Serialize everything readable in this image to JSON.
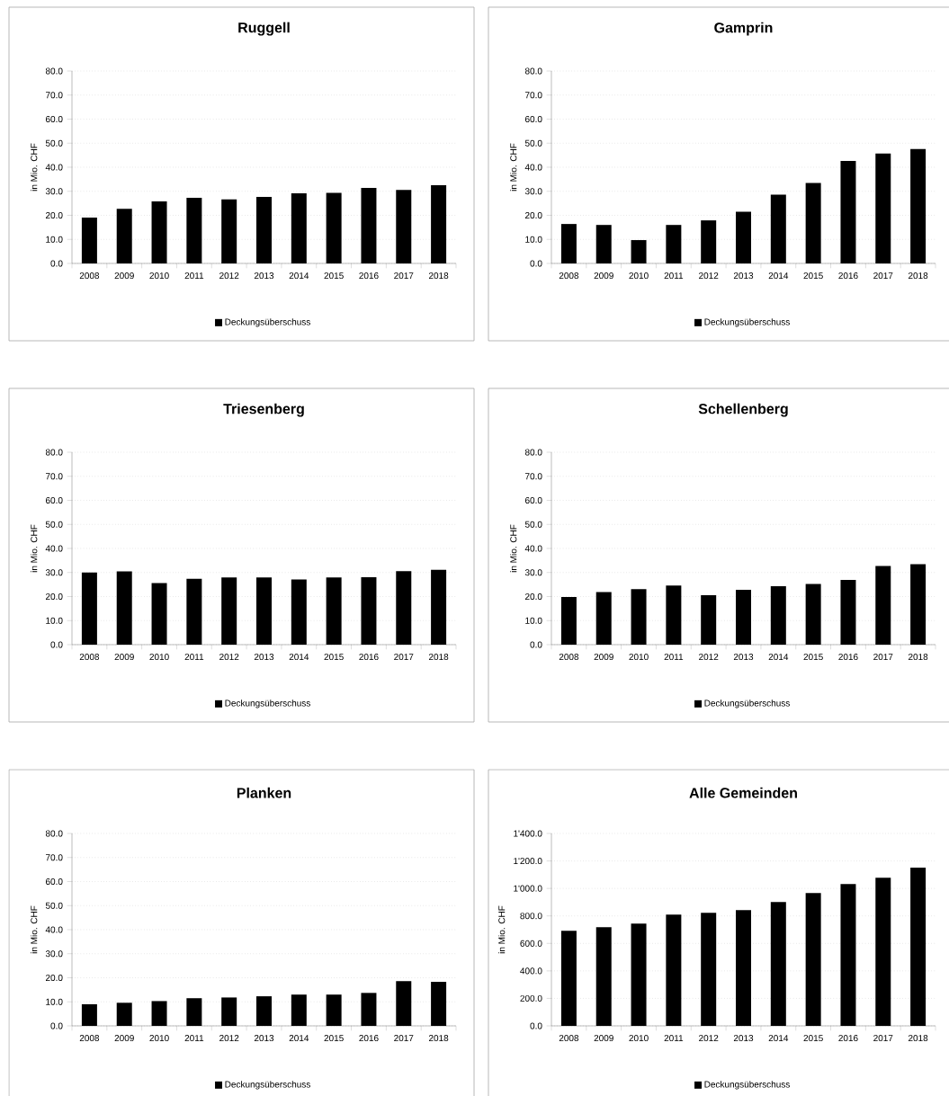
{
  "chart_data": [
    {
      "type": "bar",
      "title": "Ruggell",
      "ylabel": "in Mio. CHF",
      "categories": [
        "2008",
        "2009",
        "2010",
        "2011",
        "2012",
        "2013",
        "2014",
        "2015",
        "2016",
        "2017",
        "2018"
      ],
      "series": [
        {
          "name": "Deckungsüberschuss",
          "color": "#000000",
          "values": [
            19.1,
            22.7,
            25.8,
            27.3,
            26.6,
            27.7,
            29.2,
            29.3,
            31.4,
            30.6,
            32.5
          ]
        }
      ],
      "ylim": [
        0,
        80
      ],
      "yticks": [
        {
          "value": 0,
          "label": "0.0"
        },
        {
          "value": 10,
          "label": "10.0"
        },
        {
          "value": 20,
          "label": "20.0"
        },
        {
          "value": 30,
          "label": "30.0"
        },
        {
          "value": 40,
          "label": "40.0"
        },
        {
          "value": 50,
          "label": "50.0"
        },
        {
          "value": 60,
          "label": "60.0"
        },
        {
          "value": 70,
          "label": "70.0"
        },
        {
          "value": 80,
          "label": "80.0"
        }
      ],
      "grid": "y",
      "legend": "bottom"
    },
    {
      "type": "bar",
      "title": "Gamprin",
      "ylabel": "in Mio. CHF",
      "categories": [
        "2008",
        "2009",
        "2010",
        "2011",
        "2012",
        "2013",
        "2014",
        "2015",
        "2016",
        "2017",
        "2018"
      ],
      "series": [
        {
          "name": "Deckungsüberschuss",
          "color": "#000000",
          "values": [
            16.4,
            16.0,
            9.7,
            16.0,
            17.9,
            21.5,
            28.6,
            33.5,
            42.6,
            45.7,
            47.6
          ]
        }
      ],
      "ylim": [
        0,
        80
      ],
      "yticks": [
        {
          "value": 0,
          "label": "0.0"
        },
        {
          "value": 10,
          "label": "10.0"
        },
        {
          "value": 20,
          "label": "20.0"
        },
        {
          "value": 30,
          "label": "30.0"
        },
        {
          "value": 40,
          "label": "40.0"
        },
        {
          "value": 50,
          "label": "50.0"
        },
        {
          "value": 60,
          "label": "60.0"
        },
        {
          "value": 70,
          "label": "70.0"
        },
        {
          "value": 80,
          "label": "80.0"
        }
      ],
      "grid": "y",
      "legend": "bottom"
    },
    {
      "type": "bar",
      "title": "Triesenberg",
      "ylabel": "in Mio. CHF",
      "categories": [
        "2008",
        "2009",
        "2010",
        "2011",
        "2012",
        "2013",
        "2014",
        "2015",
        "2016",
        "2017",
        "2018"
      ],
      "series": [
        {
          "name": "Deckungsüberschuss",
          "color": "#000000",
          "values": [
            30.0,
            30.5,
            25.6,
            27.4,
            27.9,
            27.9,
            27.1,
            27.9,
            28.0,
            30.6,
            31.1
          ]
        }
      ],
      "ylim": [
        0,
        80
      ],
      "yticks": [
        {
          "value": 0,
          "label": "0.0"
        },
        {
          "value": 10,
          "label": "10.0"
        },
        {
          "value": 20,
          "label": "20.0"
        },
        {
          "value": 30,
          "label": "30.0"
        },
        {
          "value": 40,
          "label": "40.0"
        },
        {
          "value": 50,
          "label": "50.0"
        },
        {
          "value": 60,
          "label": "60.0"
        },
        {
          "value": 70,
          "label": "70.0"
        },
        {
          "value": 80,
          "label": "80.0"
        }
      ],
      "grid": "y",
      "legend": "bottom"
    },
    {
      "type": "bar",
      "title": "Schellenberg",
      "ylabel": "in Mio. CHF",
      "categories": [
        "2008",
        "2009",
        "2010",
        "2011",
        "2012",
        "2013",
        "2014",
        "2015",
        "2016",
        "2017",
        "2018"
      ],
      "series": [
        {
          "name": "Deckungsüberschuss",
          "color": "#000000",
          "values": [
            19.8,
            21.9,
            23.1,
            24.6,
            20.6,
            22.8,
            24.3,
            25.2,
            26.9,
            32.7,
            33.5
          ]
        }
      ],
      "ylim": [
        0,
        80
      ],
      "yticks": [
        {
          "value": 0,
          "label": "0.0"
        },
        {
          "value": 10,
          "label": "10.0"
        },
        {
          "value": 20,
          "label": "20.0"
        },
        {
          "value": 30,
          "label": "30.0"
        },
        {
          "value": 40,
          "label": "40.0"
        },
        {
          "value": 50,
          "label": "50.0"
        },
        {
          "value": 60,
          "label": "60.0"
        },
        {
          "value": 70,
          "label": "70.0"
        },
        {
          "value": 80,
          "label": "80.0"
        }
      ],
      "grid": "y",
      "legend": "bottom"
    },
    {
      "type": "bar",
      "title": "Planken",
      "ylabel": "in Mio. CHF",
      "categories": [
        "2008",
        "2009",
        "2010",
        "2011",
        "2012",
        "2013",
        "2014",
        "2015",
        "2016",
        "2017",
        "2018"
      ],
      "series": [
        {
          "name": "Deckungsüberschuss",
          "color": "#000000",
          "values": [
            9.0,
            9.6,
            10.3,
            11.5,
            11.8,
            12.3,
            13.0,
            13.0,
            13.7,
            18.6,
            18.3
          ]
        }
      ],
      "ylim": [
        0,
        80
      ],
      "yticks": [
        {
          "value": 0,
          "label": "0.0"
        },
        {
          "value": 10,
          "label": "10.0"
        },
        {
          "value": 20,
          "label": "20.0"
        },
        {
          "value": 30,
          "label": "30.0"
        },
        {
          "value": 40,
          "label": "40.0"
        },
        {
          "value": 50,
          "label": "50.0"
        },
        {
          "value": 60,
          "label": "60.0"
        },
        {
          "value": 70,
          "label": "70.0"
        },
        {
          "value": 80,
          "label": "80.0"
        }
      ],
      "grid": "y",
      "legend": "bottom"
    },
    {
      "type": "bar",
      "title": "Alle Gemeinden",
      "ylabel": "in Mio. CHF",
      "categories": [
        "2008",
        "2009",
        "2010",
        "2011",
        "2012",
        "2013",
        "2014",
        "2015",
        "2016",
        "2017",
        "2018"
      ],
      "series": [
        {
          "name": "Deckungsüberschuss",
          "color": "#000000",
          "values": [
            691,
            718,
            744,
            809,
            822,
            842,
            901,
            966,
            1032,
            1077,
            1152
          ]
        }
      ],
      "ylim": [
        0,
        1400
      ],
      "yticks": [
        {
          "value": 0,
          "label": "0.0"
        },
        {
          "value": 200,
          "label": "200.0"
        },
        {
          "value": 400,
          "label": "400.0"
        },
        {
          "value": 600,
          "label": "600.0"
        },
        {
          "value": 800,
          "label": "800.0"
        },
        {
          "value": 1000,
          "label": "1'000.0"
        },
        {
          "value": 1200,
          "label": "1'200.0"
        },
        {
          "value": 1400,
          "label": "1'400.0"
        }
      ],
      "grid": "y",
      "legend": "bottom"
    }
  ]
}
